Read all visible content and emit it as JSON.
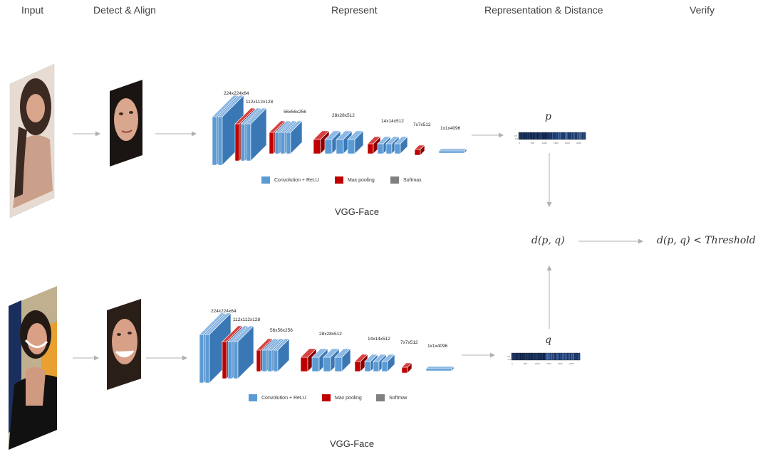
{
  "headers": {
    "input": "Input",
    "detect_align": "Detect & Align",
    "represent": "Represent",
    "representation_distance": "Representation & Distance",
    "verify": "Verify"
  },
  "networks": [
    {
      "id": "top",
      "title": "VGG-Face",
      "layer_labels": [
        "224x224x64",
        "112x112x128",
        "56x56x256",
        "28x28x512",
        "14x14x512",
        "7x7x512",
        "1x1x4096"
      ],
      "legend": {
        "conv": "Convolution + ReLU",
        "pool": "Max pooling",
        "softmax": "Softmax"
      },
      "vector_symbol": "p"
    },
    {
      "id": "bottom",
      "title": "VGG-Face",
      "layer_labels": [
        "224x224x64",
        "112x112x128",
        "56x56x256",
        "28x28x512",
        "14x14x512",
        "7x7x512",
        "1x1x4096"
      ],
      "legend": {
        "conv": "Convolution + ReLU",
        "pool": "Max pooling",
        "softmax": "Softmax"
      },
      "vector_symbol": "q"
    }
  ],
  "distance_expr": "d(p, q)",
  "verify_expr": "d(p, q) < Threshold",
  "colors": {
    "conv": "#5b9bd5",
    "conv_dark": "#3a78b5",
    "conv_top": "#8db9e6",
    "pool": "#c00000",
    "pool_dark": "#8a0000",
    "softmax": "#808080",
    "arrow": "#b0b0b0",
    "embedding": "#1f3864"
  }
}
